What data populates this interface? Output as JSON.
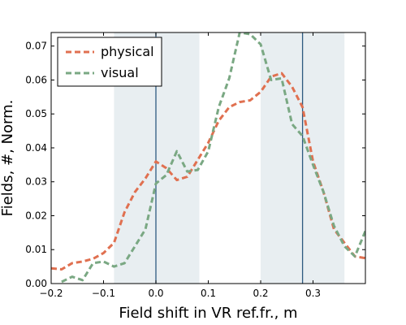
{
  "chart_data": {
    "type": "line",
    "xlabel": "Field shift in VR ref.fr., m",
    "ylabel": "Fields, #, Norm.",
    "xlim": [
      -0.2,
      0.4
    ],
    "ylim": [
      0.0,
      0.074
    ],
    "xticks": [
      -0.2,
      -0.1,
      0.0,
      0.1,
      0.2,
      0.3
    ],
    "xtick_labels": [
      "−0.2",
      "−0.1",
      "0.0",
      "0.1",
      "0.2",
      "0.3"
    ],
    "yticks": [
      0.0,
      0.01,
      0.02,
      0.03,
      0.04,
      0.05,
      0.06,
      0.07
    ],
    "ytick_labels": [
      "0.00",
      "0.01",
      "0.02",
      "0.03",
      "0.04",
      "0.05",
      "0.06",
      "0.07"
    ],
    "grid": false,
    "legend_position": "top-left",
    "shaded_bands": [
      {
        "x0": -0.08,
        "x1": 0.083,
        "color": "#e8eef1"
      },
      {
        "x0": 0.2,
        "x1": 0.36,
        "color": "#e8eef1"
      }
    ],
    "vertical_lines": [
      {
        "x": 0.0,
        "color": "#2e5a80"
      },
      {
        "x": 0.28,
        "color": "#2e5a80"
      }
    ],
    "series": [
      {
        "name": "physical",
        "color": "#e07050",
        "x": [
          -0.2,
          -0.18,
          -0.16,
          -0.14,
          -0.12,
          -0.1,
          -0.08,
          -0.06,
          -0.04,
          -0.02,
          0.0,
          0.02,
          0.04,
          0.06,
          0.08,
          0.1,
          0.12,
          0.14,
          0.16,
          0.18,
          0.2,
          0.22,
          0.24,
          0.26,
          0.28,
          0.3,
          0.32,
          0.34,
          0.36,
          0.38,
          0.4
        ],
        "y": [
          0.0045,
          0.0042,
          0.006,
          0.0065,
          0.0073,
          0.009,
          0.012,
          0.021,
          0.027,
          0.031,
          0.036,
          0.034,
          0.0305,
          0.0315,
          0.0365,
          0.0415,
          0.048,
          0.052,
          0.0535,
          0.054,
          0.0565,
          0.061,
          0.062,
          0.058,
          0.052,
          0.036,
          0.027,
          0.016,
          0.012,
          0.008,
          0.0075
        ]
      },
      {
        "name": "visual",
        "color": "#7aa883",
        "x": [
          -0.18,
          -0.16,
          -0.14,
          -0.12,
          -0.1,
          -0.08,
          -0.06,
          -0.04,
          -0.02,
          0.0,
          0.02,
          0.04,
          0.06,
          0.08,
          0.1,
          0.12,
          0.14,
          0.16,
          0.18,
          0.2,
          0.22,
          0.24,
          0.26,
          0.28,
          0.3,
          0.32,
          0.34,
          0.36,
          0.38,
          0.4
        ],
        "y": [
          0.0005,
          0.002,
          0.001,
          0.006,
          0.0065,
          0.005,
          0.006,
          0.011,
          0.016,
          0.0295,
          0.032,
          0.039,
          0.033,
          0.0335,
          0.039,
          0.052,
          0.0605,
          0.074,
          0.0735,
          0.0705,
          0.06,
          0.0605,
          0.047,
          0.0435,
          0.035,
          0.027,
          0.017,
          0.011,
          0.008,
          0.0155
        ]
      }
    ]
  }
}
